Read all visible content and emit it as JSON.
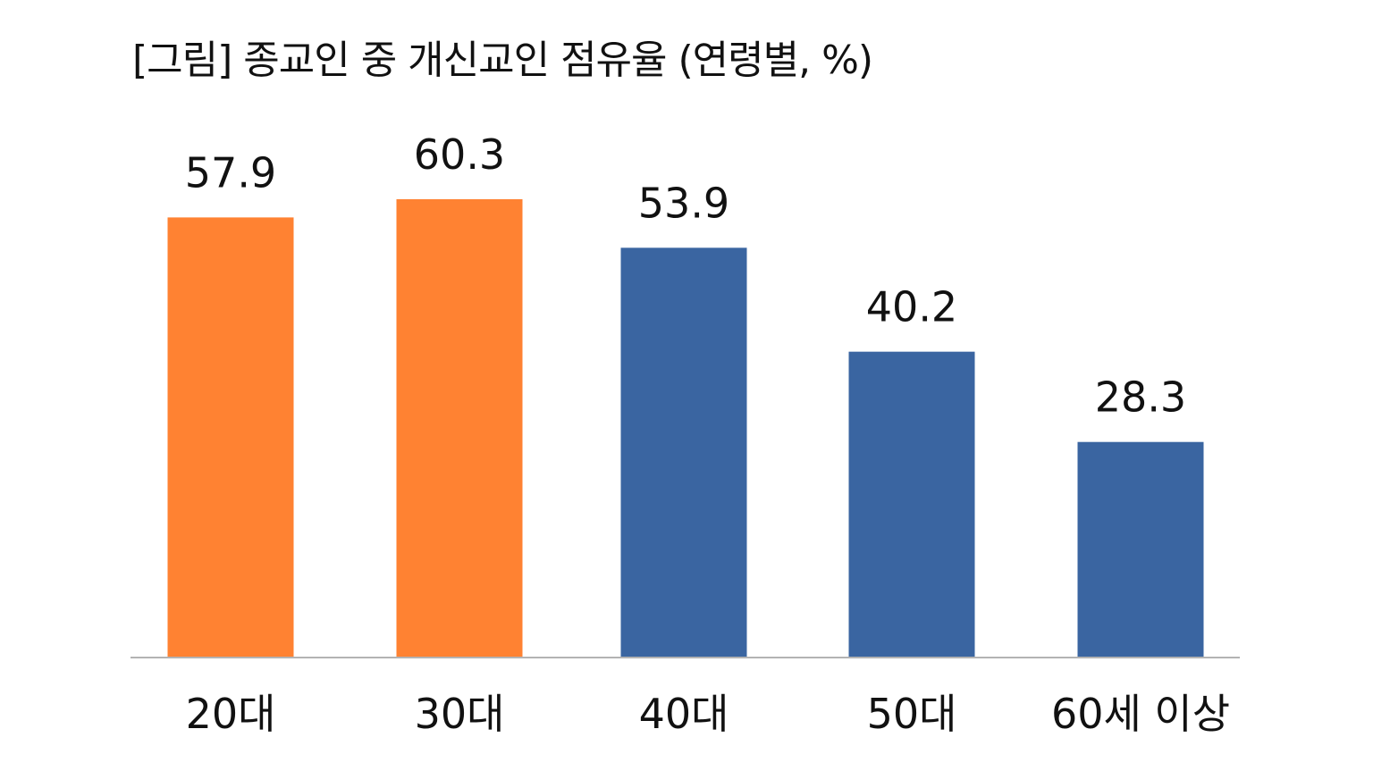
{
  "chart_data": {
    "type": "bar",
    "title": "[그림] 종교인 중 개신교인 점유율 (연령별, %)",
    "categories": [
      "20대",
      "30대",
      "40대",
      "50대",
      "60세 이상"
    ],
    "values": [
      57.9,
      60.3,
      53.9,
      40.2,
      28.3
    ],
    "value_labels": [
      "57.9",
      "60.3",
      "53.9",
      "40.2",
      "28.3"
    ],
    "ylim": [
      0,
      60.3
    ],
    "grid": false,
    "legend": "none",
    "xlabel": "",
    "ylabel": "",
    "bar_colors": [
      "#FF8232",
      "#FF8232",
      "#3A65A1",
      "#3A65A1",
      "#3A65A1"
    ]
  },
  "colors": {
    "orange": "#FF8232",
    "blue": "#3A65A1",
    "axis": "#B3B3B3",
    "text": "#111111"
  }
}
